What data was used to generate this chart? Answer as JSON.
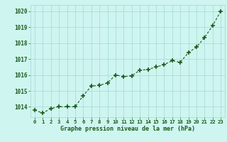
{
  "x": [
    0,
    1,
    2,
    3,
    4,
    5,
    6,
    7,
    8,
    9,
    10,
    11,
    12,
    13,
    14,
    15,
    16,
    17,
    18,
    19,
    20,
    21,
    22,
    23
  ],
  "y": [
    1013.8,
    1013.6,
    1013.9,
    1014.0,
    1014.0,
    1014.0,
    1014.7,
    1015.3,
    1015.35,
    1015.5,
    1016.0,
    1015.9,
    1015.95,
    1016.3,
    1016.35,
    1016.5,
    1016.65,
    1016.9,
    1016.8,
    1017.4,
    1017.75,
    1018.35,
    1019.1,
    1020.0
  ],
  "line_color": "#1a5c1a",
  "marker_color": "#1a5c1a",
  "bg_color": "#cef5f0",
  "grid_color": "#aaddd8",
  "xlabel": "Graphe pression niveau de la mer (hPa)",
  "xlabel_color": "#1a5c1a",
  "tick_label_color": "#1a5c1a",
  "ylim": [
    1013.35,
    1020.4
  ],
  "yticks": [
    1014,
    1015,
    1016,
    1017,
    1018,
    1019,
    1020
  ],
  "xticks": [
    0,
    1,
    2,
    3,
    4,
    5,
    6,
    7,
    8,
    9,
    10,
    11,
    12,
    13,
    14,
    15,
    16,
    17,
    18,
    19,
    20,
    21,
    22,
    23
  ],
  "xtick_labels": [
    "0",
    "1",
    "2",
    "3",
    "4",
    "5",
    "6",
    "7",
    "8",
    "9",
    "10",
    "11",
    "12",
    "13",
    "14",
    "15",
    "16",
    "17",
    "18",
    "19",
    "20",
    "21",
    "22",
    "23"
  ]
}
